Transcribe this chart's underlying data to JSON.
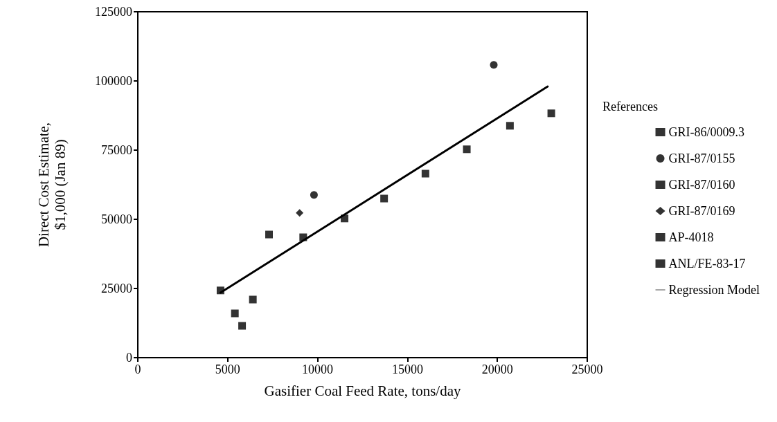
{
  "chart_data": {
    "type": "scatter",
    "xlabel": "Gasifier Coal Feed Rate, tons/day",
    "ylabel": "Direct Cost Estimate,\n$1,000 (Jan 89)",
    "legend_title": "References",
    "legend": "right",
    "grid": false,
    "xlim": [
      0,
      25000
    ],
    "xticks": [
      0,
      5000,
      10000,
      15000,
      20000,
      25000
    ],
    "ylim": [
      0,
      125000
    ],
    "yticks": [
      0,
      25000,
      50000,
      75000,
      100000,
      125000
    ],
    "series": [
      {
        "name": "GRI-86/0009.3",
        "color": "#000000",
        "marker": "square",
        "x": [
          4600,
          9200,
          11500,
          13700,
          16000,
          18300,
          20700,
          23000
        ],
        "values": [
          24300,
          43500,
          50300,
          57500,
          66500,
          75300,
          83800,
          88300
        ]
      },
      {
        "name": "GRI-87/0155",
        "color": "#000000",
        "marker": "circle",
        "x": [
          9800,
          19800
        ],
        "values": [
          58800,
          105800
        ]
      },
      {
        "name": "GRI-87/0160",
        "color": "#000000",
        "marker": "square",
        "x": [
          7300
        ],
        "values": [
          44500
        ]
      },
      {
        "name": "GRI-87/0169",
        "color": "#000000",
        "marker": "diamond",
        "x": [
          9000
        ],
        "values": [
          52300
        ]
      },
      {
        "name": "AP-4018",
        "color": "#000000",
        "marker": "square",
        "x": [
          5400,
          6400
        ],
        "values": [
          16000,
          21000
        ]
      },
      {
        "name": "ANL/FE-83-17",
        "color": "#000000",
        "marker": "square",
        "x": [
          5800
        ],
        "values": [
          11500
        ]
      },
      {
        "name": "Regression Model",
        "type": "line",
        "color": "#000000",
        "marker": "none",
        "x": [
          4600,
          22800
        ],
        "values": [
          23500,
          98000
        ]
      }
    ]
  }
}
